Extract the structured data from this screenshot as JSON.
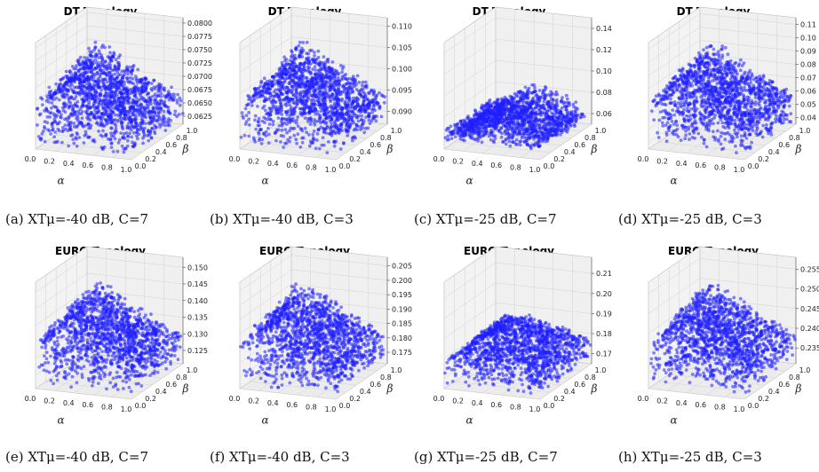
{
  "captions": [
    "(a) XTμ=-40 dB, C=7",
    "(b) XTμ=-40 dB, C=3",
    "(c) XTμ=-25 dB, C=7",
    "(d) XTμ=-25 dB, C=3",
    "(e) XTμ=-40 dB, C=7",
    "(f) XTμ=-40 dB, C=3",
    "(g) XTμ=-25 dB, C=7",
    "(h) XTμ=-25 dB, C=3"
  ],
  "colors": {
    "points": "#1f1fff",
    "pane": "#ececec",
    "grid": "#d2d2d2"
  },
  "chart_data": [
    {
      "type": "scatter",
      "title": "DT Topology",
      "xlabel": "α",
      "ylabel": "β",
      "xlim": [
        0,
        1
      ],
      "ylim": [
        0,
        1
      ],
      "x_ticks": [
        "0.0",
        "0.2",
        "0.4",
        "0.6",
        "0.8",
        "1.0"
      ],
      "y_ticks": [
        "0.0",
        "0.2",
        "0.4",
        "0.6",
        "0.8",
        "1.0"
      ],
      "z_ticks": [
        "0.0625",
        "0.0650",
        "0.0675",
        "0.0700",
        "0.0725",
        "0.0750",
        "0.0775",
        "0.0800"
      ],
      "zlim": [
        0.061,
        0.081
      ],
      "shape": "pyramid",
      "description_peak": {
        "alpha": 0.45,
        "beta": 0.35,
        "z": 0.08
      }
    },
    {
      "type": "scatter",
      "title": "DT Topology",
      "xlabel": "α",
      "ylabel": "β",
      "xlim": [
        0,
        1
      ],
      "ylim": [
        0,
        1
      ],
      "x_ticks": [
        "0.0",
        "0.2",
        "0.4",
        "0.6",
        "0.8",
        "1.0"
      ],
      "y_ticks": [
        "0.0",
        "0.2",
        "0.4",
        "0.6",
        "0.8",
        "1.0"
      ],
      "z_ticks": [
        "0.090",
        "0.095",
        "0.100",
        "0.105",
        "0.110"
      ],
      "zlim": [
        0.087,
        0.112
      ],
      "shape": "pyramid",
      "description_peak": {
        "alpha": 0.45,
        "beta": 0.35,
        "z": 0.11
      }
    },
    {
      "type": "scatter",
      "title": "DT Topology",
      "xlabel": "α",
      "ylabel": "β",
      "xlim": [
        0,
        1
      ],
      "ylim": [
        0,
        1
      ],
      "x_ticks": [
        "0.0",
        "0.2",
        "0.4",
        "0.6",
        "0.8",
        "1.0"
      ],
      "y_ticks": [
        "0.0",
        "0.2",
        "0.4",
        "0.6",
        "0.8",
        "1.0"
      ],
      "z_ticks": [
        "0.06",
        "0.08",
        "0.10",
        "0.12",
        "0.14"
      ],
      "zlim": [
        0.05,
        0.15
      ],
      "shape": "flat",
      "description_peak": {
        "alpha": 0.5,
        "beta": 0.5,
        "z": 0.085
      }
    },
    {
      "type": "scatter",
      "title": "DT Topology",
      "xlabel": "α",
      "ylabel": "β",
      "xlim": [
        0,
        1
      ],
      "ylim": [
        0,
        1
      ],
      "x_ticks": [
        "0.0",
        "0.2",
        "0.4",
        "0.6",
        "0.8",
        "1.0"
      ],
      "y_ticks": [
        "0.0",
        "0.2",
        "0.4",
        "0.6",
        "0.8",
        "1.0"
      ],
      "z_ticks": [
        "0.04",
        "0.05",
        "0.06",
        "0.07",
        "0.08",
        "0.09",
        "0.10",
        "0.11"
      ],
      "zlim": [
        0.035,
        0.115
      ],
      "shape": "pyramid",
      "description_peak": {
        "alpha": 0.45,
        "beta": 0.35,
        "z": 0.11
      }
    },
    {
      "type": "scatter",
      "title": "EURO Topology",
      "xlabel": "α",
      "ylabel": "β",
      "xlim": [
        0,
        1
      ],
      "ylim": [
        0,
        1
      ],
      "x_ticks": [
        "0.0",
        "0.2",
        "0.4",
        "0.6",
        "0.8",
        "1.0"
      ],
      "y_ticks": [
        "0.0",
        "0.2",
        "0.4",
        "0.6",
        "0.8",
        "1.0"
      ],
      "z_ticks": [
        "0.125",
        "0.130",
        "0.135",
        "0.140",
        "0.145",
        "0.150"
      ],
      "zlim": [
        0.121,
        0.153
      ],
      "shape": "pyramid",
      "description_peak": {
        "alpha": 0.45,
        "beta": 0.35,
        "z": 0.15
      }
    },
    {
      "type": "scatter",
      "title": "EURO Topology",
      "xlabel": "α",
      "ylabel": "β",
      "xlim": [
        0,
        1
      ],
      "ylim": [
        0,
        1
      ],
      "x_ticks": [
        "0.0",
        "0.2",
        "0.4",
        "0.6",
        "0.8",
        "1.0"
      ],
      "y_ticks": [
        "0.0",
        "0.2",
        "0.4",
        "0.6",
        "0.8",
        "1.0"
      ],
      "z_ticks": [
        "0.175",
        "0.180",
        "0.185",
        "0.190",
        "0.195",
        "0.200",
        "0.205"
      ],
      "zlim": [
        0.171,
        0.208
      ],
      "shape": "pyramid",
      "description_peak": {
        "alpha": 0.45,
        "beta": 0.35,
        "z": 0.205
      }
    },
    {
      "type": "scatter",
      "title": "EURO Topology",
      "xlabel": "α",
      "ylabel": "β",
      "xlim": [
        0,
        1
      ],
      "ylim": [
        0,
        1
      ],
      "x_ticks": [
        "0.0",
        "0.2",
        "0.4",
        "0.6",
        "0.8",
        "1.0"
      ],
      "y_ticks": [
        "0.0",
        "0.2",
        "0.4",
        "0.6",
        "0.8",
        "1.0"
      ],
      "z_ticks": [
        "0.17",
        "0.18",
        "0.19",
        "0.20",
        "0.21"
      ],
      "zlim": [
        0.165,
        0.218
      ],
      "shape": "pyramid-low",
      "description_peak": {
        "alpha": 0.5,
        "beta": 0.4,
        "z": 0.195
      }
    },
    {
      "type": "scatter",
      "title": "EURO Topology",
      "xlabel": "α",
      "ylabel": "β",
      "xlim": [
        0,
        1
      ],
      "ylim": [
        0,
        1
      ],
      "x_ticks": [
        "0.0",
        "0.2",
        "0.4",
        "0.6",
        "0.8",
        "1.0"
      ],
      "y_ticks": [
        "0.0",
        "0.2",
        "0.4",
        "0.6",
        "0.8",
        "1.0"
      ],
      "z_ticks": [
        "0.235",
        "0.240",
        "0.245",
        "0.250",
        "0.255"
      ],
      "zlim": [
        0.231,
        0.258
      ],
      "shape": "pyramid",
      "description_peak": {
        "alpha": 0.45,
        "beta": 0.35,
        "z": 0.255
      }
    }
  ]
}
